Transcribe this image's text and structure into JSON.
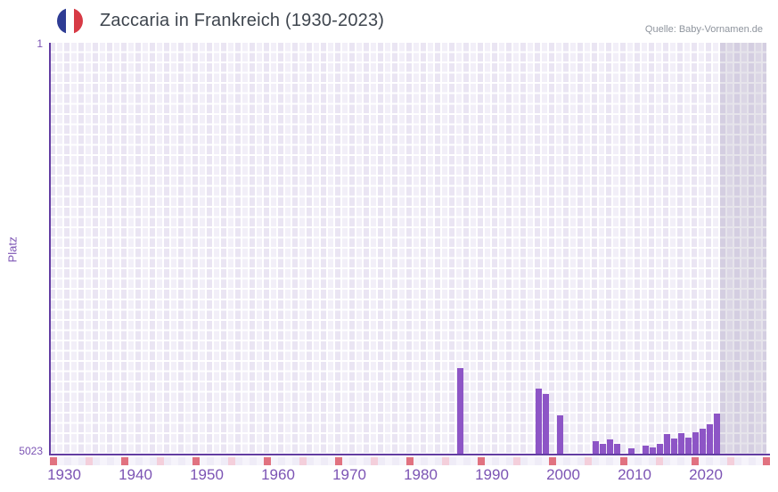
{
  "header": {
    "title": "Zaccaria in Frankreich (1930-2023)",
    "flag_icon": "france-flag-icon",
    "source": "Quelle: Baby-Vornamen.de"
  },
  "chart_data": {
    "type": "bar",
    "title": "Zaccaria in Frankreich (1930-2023)",
    "xlabel": "",
    "ylabel": "Platz",
    "yaxis": {
      "top_label": "1",
      "bottom_label": "5023",
      "min": 1,
      "max": 5023,
      "inverted": true
    },
    "xaxis": {
      "tick_labels": [
        "1930",
        "1940",
        "1950",
        "1960",
        "1970",
        "1980",
        "1990",
        "2000",
        "2010",
        "2020"
      ],
      "domain_start_year": 1928,
      "domain_end_year": 2028
    },
    "bars": [
      {
        "year": 1985,
        "rank": 4010
      },
      {
        "year": 1996,
        "rank": 4270
      },
      {
        "year": 1997,
        "rank": 4330
      },
      {
        "year": 1999,
        "rank": 4590
      },
      {
        "year": 2004,
        "rank": 4910
      },
      {
        "year": 2005,
        "rank": 4945
      },
      {
        "year": 2006,
        "rank": 4890
      },
      {
        "year": 2007,
        "rank": 4950
      },
      {
        "year": 2009,
        "rank": 5000
      },
      {
        "year": 2011,
        "rank": 4965
      },
      {
        "year": 2012,
        "rank": 4995
      },
      {
        "year": 2013,
        "rank": 4950
      },
      {
        "year": 2014,
        "rank": 4830
      },
      {
        "year": 2015,
        "rank": 4885
      },
      {
        "year": 2016,
        "rank": 4810
      },
      {
        "year": 2017,
        "rank": 4865
      },
      {
        "year": 2018,
        "rank": 4800
      },
      {
        "year": 2019,
        "rank": 4755
      },
      {
        "year": 2020,
        "rank": 4700
      },
      {
        "year": 2021,
        "rank": 4570
      }
    ],
    "no_data_band": {
      "start_year": 2022,
      "end_year": 2028
    },
    "timeline_strip": {
      "red_every_years": 10,
      "red_start_year": 1928,
      "pink_offset_years": 5
    },
    "legend": "none",
    "grid": "on",
    "colors": {
      "bar": "#8d55c6",
      "axis_line": "#633da2",
      "tick_label": "#7c54b4",
      "plot_bg_a": "#eae5f3",
      "plot_bg_b": "#f2eff8",
      "no_data_band": "rgba(106,96,138,0.17)",
      "ruler_red": "#e17280",
      "ruler_pink": "#f4cfdb",
      "ruler_pale_a": "#efecf7",
      "ruler_pale_b": "#f6f4fb",
      "title_text": "#3e454e",
      "source_text": "#8e949d",
      "flag_blue": "#2e3c94",
      "flag_red": "#d73a45"
    }
  }
}
